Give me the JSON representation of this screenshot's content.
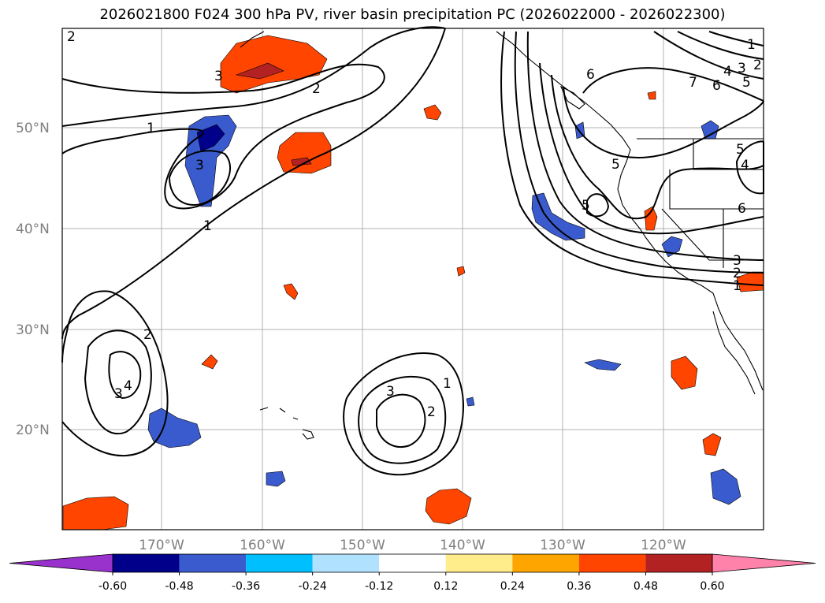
{
  "title": "2026021800 F024 300 hPa PV, river basin precipitation PC (2026022000 - 2026022300)",
  "map": {
    "lat_labels": [
      "50°N",
      "40°N",
      "30°N",
      "20°N"
    ],
    "lon_labels": [
      "170°W",
      "160°W",
      "150°W",
      "140°W",
      "130°W",
      "120°W"
    ],
    "contour_labels": [
      "2",
      "1",
      "3",
      "2",
      "1",
      "2",
      "3",
      "3",
      "4",
      "3",
      "2",
      "1",
      "6",
      "7",
      "6",
      "4",
      "5",
      "5",
      "3",
      "2",
      "5",
      "5",
      "4",
      "6",
      "3",
      "2",
      "1",
      "1"
    ]
  },
  "colorbar": {
    "ticks": [
      "-0.60",
      "-0.48",
      "-0.36",
      "-0.24",
      "-0.12",
      "0.12",
      "0.24",
      "0.36",
      "0.48",
      "0.60"
    ],
    "colors": [
      "#9932cc",
      "#00008b",
      "#3a5bcd",
      "#00bfff",
      "#b0e2ff",
      "#ffffff",
      "#ffec8b",
      "#ffa500",
      "#ff4500",
      "#b22222",
      "#ff82ab"
    ]
  }
}
